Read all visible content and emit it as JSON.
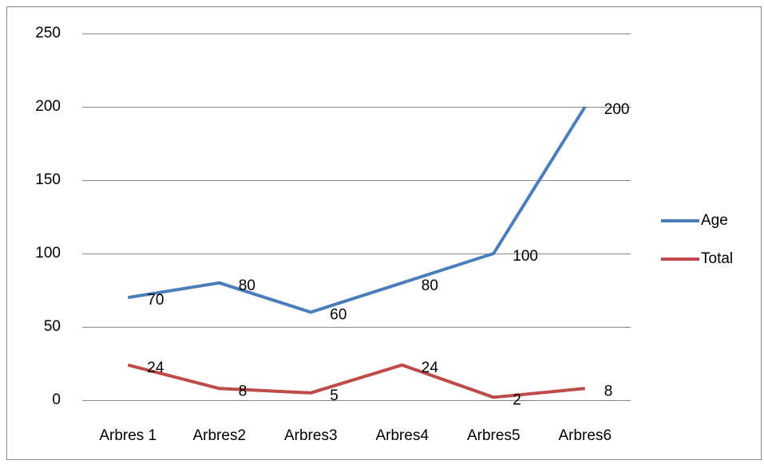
{
  "chart_data": {
    "type": "line",
    "categories": [
      "Arbres 1",
      "Arbres2",
      "Arbres3",
      "Arbres4",
      "Arbres5",
      "Arbres6"
    ],
    "series": [
      {
        "name": "Age",
        "color": "#4a7ebb",
        "values": [
          70,
          80,
          60,
          80,
          100,
          200
        ]
      },
      {
        "name": "Total",
        "color": "#be4b48",
        "values": [
          24,
          8,
          5,
          24,
          2,
          8
        ]
      }
    ],
    "ylim": [
      0,
      250
    ],
    "yticks": [
      0,
      50,
      100,
      150,
      200,
      250
    ],
    "grid": true,
    "legend": "right"
  }
}
